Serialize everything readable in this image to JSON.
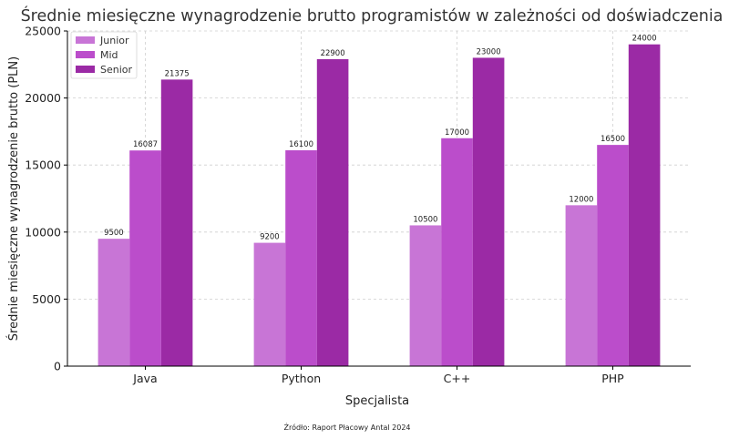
{
  "chart_data": {
    "type": "bar",
    "title": "Średnie miesięczne wynagrodzenie brutto programistów w zależności od doświadczenia",
    "xlabel": "Specjalista",
    "ylabel": "Średnie miesięczne wynagrodzenie brutto (PLN)",
    "categories": [
      "Java",
      "Python",
      "C++",
      "PHP"
    ],
    "series": [
      {
        "name": "Junior",
        "color": "#c875d6",
        "values": [
          9500,
          9200,
          10500,
          12000
        ]
      },
      {
        "name": "Mid",
        "color": "#bb4dcb",
        "values": [
          16087,
          16100,
          17000,
          16500
        ]
      },
      {
        "name": "Senior",
        "color": "#9b2aa5",
        "values": [
          21375,
          22900,
          23000,
          24000
        ]
      }
    ],
    "ylim": [
      0,
      25000
    ],
    "yticks": [
      0,
      5000,
      10000,
      15000,
      20000,
      25000
    ],
    "grid": true,
    "legend_position": "top-left",
    "source": "Źródło: Raport Płacowy Antal 2024"
  }
}
